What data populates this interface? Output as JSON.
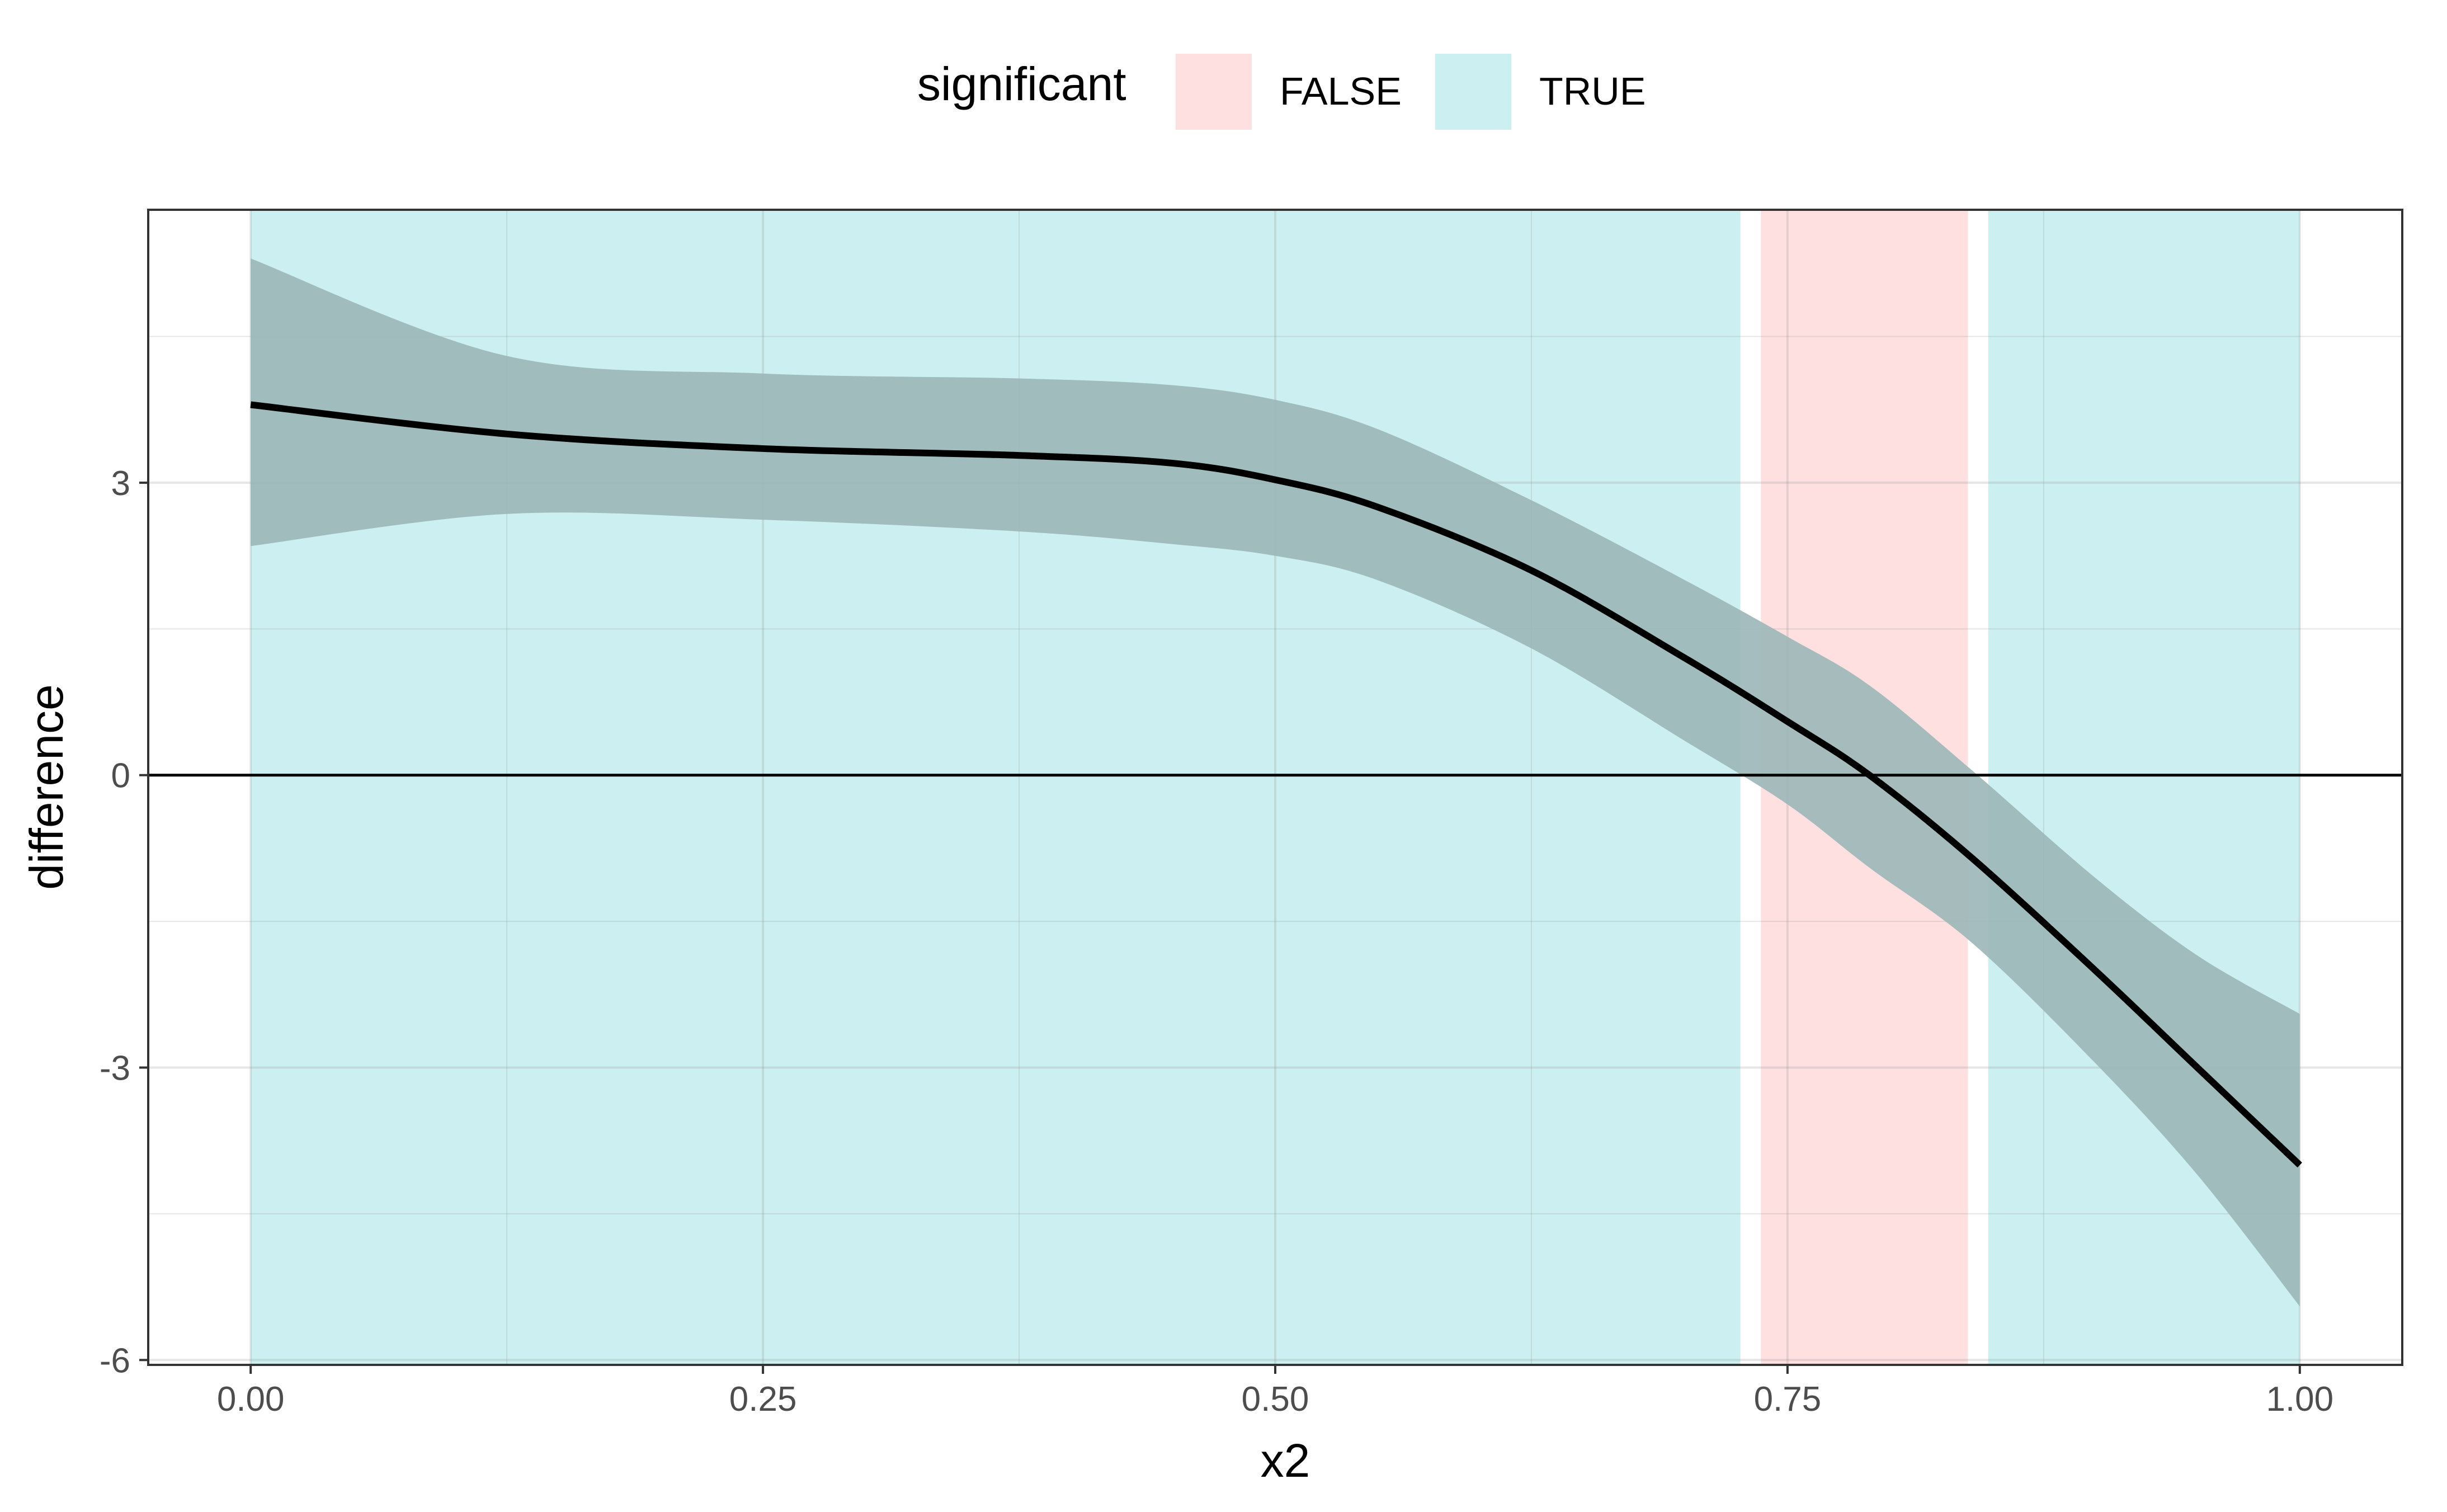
{
  "chart_data": {
    "type": "line",
    "xlabel": "x2",
    "ylabel": "difference",
    "xlim": [
      -0.05,
      1.05
    ],
    "ylim": [
      -6.05,
      5.8
    ],
    "x_ticks": [
      0.0,
      0.25,
      0.5,
      0.75,
      1.0
    ],
    "x_tick_labels": [
      "0.00",
      "0.25",
      "0.50",
      "0.75",
      "1.00"
    ],
    "y_ticks": [
      -6,
      -3,
      0,
      3
    ],
    "y_tick_labels": [
      "-6",
      "-3",
      "0",
      "3"
    ],
    "grid": true,
    "reference_line_y": 0,
    "legend": {
      "title": "significant",
      "placement": "top",
      "entries": [
        {
          "label": "FALSE",
          "color": "#F8766D"
        },
        {
          "label": "TRUE",
          "color": "#00BFC4"
        }
      ]
    },
    "regions": [
      {
        "x_start": 0.0,
        "x_end": 0.727,
        "significant": "TRUE"
      },
      {
        "x_start": 0.737,
        "x_end": 0.838,
        "significant": "FALSE"
      },
      {
        "x_start": 0.848,
        "x_end": 1.0,
        "significant": "TRUE"
      }
    ],
    "series": [
      {
        "x": [
          0.0,
          0.125,
          0.25,
          0.375,
          0.45,
          0.5,
          0.55,
          0.625,
          0.7,
          0.75,
          0.79,
          0.84,
          0.9,
          0.95,
          1.0
        ],
        "y": [
          3.8,
          3.5,
          3.35,
          3.28,
          3.2,
          3.03,
          2.75,
          2.1,
          1.2,
          0.55,
          0.0,
          -0.85,
          -2.0,
          -3.0,
          -4.0
        ],
        "lower": [
          2.35,
          2.68,
          2.62,
          2.5,
          2.37,
          2.25,
          2.0,
          1.3,
          0.35,
          -0.3,
          -0.95,
          -1.72,
          -2.95,
          -4.1,
          -5.45
        ],
        "upper": [
          5.3,
          4.3,
          4.12,
          4.07,
          4.0,
          3.85,
          3.55,
          2.82,
          2.0,
          1.42,
          0.92,
          0.05,
          -1.05,
          -1.85,
          -2.45
        ]
      }
    ],
    "colors": {
      "true_fill": "#CCF0F1",
      "false_fill": "#FEE0E0",
      "band": "#9DB7B8",
      "line": "#000000"
    }
  }
}
